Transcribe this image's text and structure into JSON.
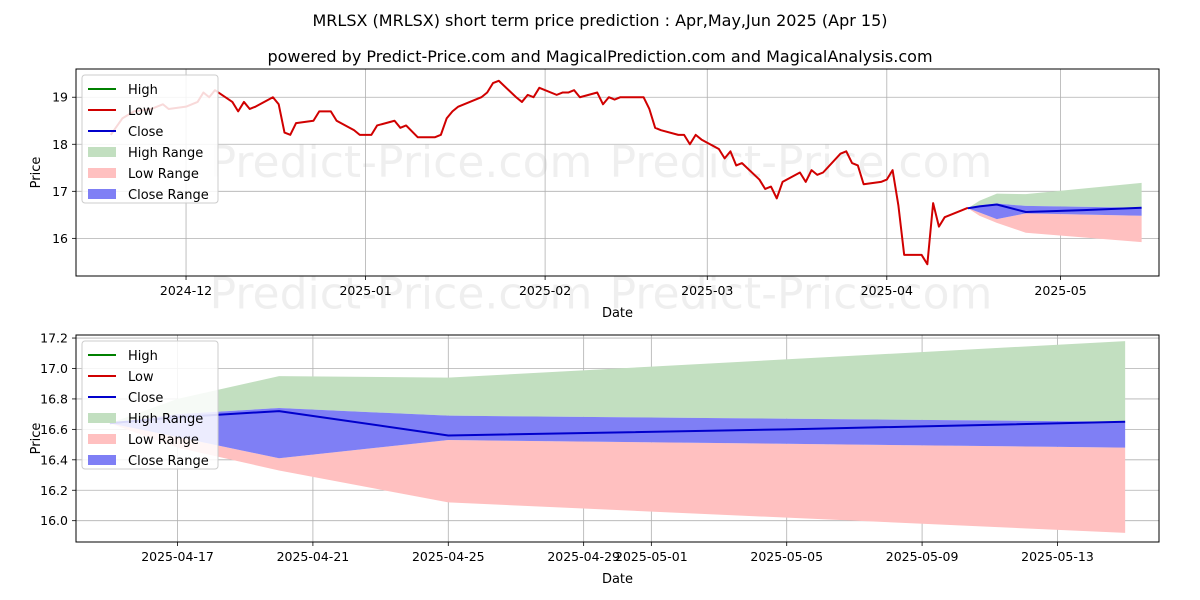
{
  "title": "MRLSX (MRLSX) short term price prediction : Apr,May,Jun 2025 (Apr 15)",
  "subtitle": "powered by Predict-Price.com and MagicalPrediction.com and MagicalAnalysis.com",
  "watermark": "Predict-Price.com",
  "colors": {
    "high": "#008000",
    "low": "#d00000",
    "close": "#0000cc",
    "high_range": "#c2dfc0",
    "low_range": "#ffc0c0",
    "close_range": "#7f7ff5"
  },
  "legend": {
    "placement": "top-left",
    "items": [
      "High",
      "Low",
      "Close",
      "High Range",
      "Low Range",
      "Close Range"
    ]
  },
  "chart_data": [
    {
      "type": "line",
      "xlabel": "Date",
      "ylabel": "Price",
      "xlim": [
        "2024-11-12",
        "2025-05-18"
      ],
      "ylim": [
        15.2,
        19.6
      ],
      "x_ticks": [
        "2024-12-01",
        "2025-01-01",
        "2025-02-01",
        "2025-03-01",
        "2025-04-01",
        "2025-05-01"
      ],
      "x_tick_labels": [
        "2024-12",
        "2025-01",
        "2025-02",
        "2025-03",
        "2025-04",
        "2025-05"
      ],
      "y_ticks": [
        16,
        17,
        18,
        19
      ],
      "grid": true,
      "series": [
        {
          "name": "Low",
          "points": [
            [
              "2024-11-18",
              18.2
            ],
            [
              "2024-11-20",
              18.55
            ],
            [
              "2024-11-22",
              18.7
            ],
            [
              "2024-11-25",
              18.75
            ],
            [
              "2024-11-27",
              18.85
            ],
            [
              "2024-11-28",
              18.75
            ],
            [
              "2024-12-01",
              18.8
            ],
            [
              "2024-12-03",
              18.9
            ],
            [
              "2024-12-04",
              19.1
            ],
            [
              "2024-12-05",
              19.0
            ],
            [
              "2024-12-06",
              19.15
            ],
            [
              "2024-12-09",
              18.9
            ],
            [
              "2024-12-10",
              18.7
            ],
            [
              "2024-12-11",
              18.9
            ],
            [
              "2024-12-12",
              18.75
            ],
            [
              "2024-12-13",
              18.8
            ],
            [
              "2024-12-16",
              19.0
            ],
            [
              "2024-12-17",
              18.85
            ],
            [
              "2024-12-18",
              18.25
            ],
            [
              "2024-12-19",
              18.2
            ],
            [
              "2024-12-20",
              18.45
            ],
            [
              "2024-12-23",
              18.5
            ],
            [
              "2024-12-24",
              18.7
            ],
            [
              "2024-12-26",
              18.7
            ],
            [
              "2024-12-27",
              18.5
            ],
            [
              "2024-12-30",
              18.3
            ],
            [
              "2024-12-31",
              18.2
            ],
            [
              "2025-01-02",
              18.2
            ],
            [
              "2025-01-03",
              18.4
            ],
            [
              "2025-01-06",
              18.5
            ],
            [
              "2025-01-07",
              18.35
            ],
            [
              "2025-01-08",
              18.4
            ],
            [
              "2025-01-10",
              18.15
            ],
            [
              "2025-01-13",
              18.15
            ],
            [
              "2025-01-14",
              18.2
            ],
            [
              "2025-01-15",
              18.55
            ],
            [
              "2025-01-16",
              18.7
            ],
            [
              "2025-01-17",
              18.8
            ],
            [
              "2025-01-21",
              19.0
            ],
            [
              "2025-01-22",
              19.1
            ],
            [
              "2025-01-23",
              19.3
            ],
            [
              "2025-01-24",
              19.35
            ],
            [
              "2025-01-27",
              19.0
            ],
            [
              "2025-01-28",
              18.9
            ],
            [
              "2025-01-29",
              19.05
            ],
            [
              "2025-01-30",
              19.0
            ],
            [
              "2025-01-31",
              19.2
            ],
            [
              "2025-02-03",
              19.05
            ],
            [
              "2025-02-04",
              19.1
            ],
            [
              "2025-02-05",
              19.1
            ],
            [
              "2025-02-06",
              19.15
            ],
            [
              "2025-02-07",
              19.0
            ],
            [
              "2025-02-10",
              19.1
            ],
            [
              "2025-02-11",
              18.85
            ],
            [
              "2025-02-12",
              19.0
            ],
            [
              "2025-02-13",
              18.95
            ],
            [
              "2025-02-14",
              19.0
            ],
            [
              "2025-02-18",
              19.0
            ],
            [
              "2025-02-19",
              18.75
            ],
            [
              "2025-02-20",
              18.35
            ],
            [
              "2025-02-21",
              18.3
            ],
            [
              "2025-02-24",
              18.2
            ],
            [
              "2025-02-25",
              18.2
            ],
            [
              "2025-02-26",
              18.0
            ],
            [
              "2025-02-27",
              18.2
            ],
            [
              "2025-02-28",
              18.1
            ],
            [
              "2025-03-03",
              17.9
            ],
            [
              "2025-03-04",
              17.7
            ],
            [
              "2025-03-05",
              17.85
            ],
            [
              "2025-03-06",
              17.55
            ],
            [
              "2025-03-07",
              17.6
            ],
            [
              "2025-03-10",
              17.25
            ],
            [
              "2025-03-11",
              17.05
            ],
            [
              "2025-03-12",
              17.1
            ],
            [
              "2025-03-13",
              16.85
            ],
            [
              "2025-03-14",
              17.2
            ],
            [
              "2025-03-17",
              17.4
            ],
            [
              "2025-03-18",
              17.2
            ],
            [
              "2025-03-19",
              17.45
            ],
            [
              "2025-03-20",
              17.35
            ],
            [
              "2025-03-21",
              17.4
            ],
            [
              "2025-03-24",
              17.8
            ],
            [
              "2025-03-25",
              17.85
            ],
            [
              "2025-03-26",
              17.6
            ],
            [
              "2025-03-27",
              17.55
            ],
            [
              "2025-03-28",
              17.15
            ],
            [
              "2025-03-31",
              17.2
            ],
            [
              "2025-04-01",
              17.25
            ],
            [
              "2025-04-02",
              17.45
            ],
            [
              "2025-04-03",
              16.7
            ],
            [
              "2025-04-04",
              15.65
            ],
            [
              "2025-04-07",
              15.65
            ],
            [
              "2025-04-08",
              15.45
            ],
            [
              "2025-04-09",
              16.75
            ],
            [
              "2025-04-10",
              16.25
            ],
            [
              "2025-04-11",
              16.45
            ],
            [
              "2025-04-14",
              16.6
            ],
            [
              "2025-04-15",
              16.65
            ]
          ]
        },
        {
          "name": "Close",
          "points": [
            [
              "2025-04-15",
              16.64
            ],
            [
              "2025-04-17",
              16.68
            ],
            [
              "2025-04-20",
              16.72
            ],
            [
              "2025-04-25",
              16.56
            ],
            [
              "2025-05-05",
              16.6
            ],
            [
              "2025-05-15",
              16.65
            ]
          ]
        },
        {
          "name": "High Range",
          "points": [
            [
              "2025-04-15",
              16.64
            ],
            [
              "2025-04-17",
              16.8
            ],
            [
              "2025-04-20",
              16.95
            ],
            [
              "2025-04-25",
              16.94
            ],
            [
              "2025-05-15",
              17.18
            ]
          ]
        },
        {
          "name": "Low Range",
          "points": [
            [
              "2025-04-15",
              16.64
            ],
            [
              "2025-04-17",
              16.48
            ],
            [
              "2025-04-20",
              16.33
            ],
            [
              "2025-04-25",
              16.12
            ],
            [
              "2025-05-15",
              15.92
            ]
          ]
        },
        {
          "name": "Close Range",
          "upper": [
            [
              "2025-04-15",
              16.64
            ],
            [
              "2025-04-17",
              16.7
            ],
            [
              "2025-04-20",
              16.74
            ],
            [
              "2025-04-25",
              16.69
            ],
            [
              "2025-05-15",
              16.65
            ]
          ],
          "lower": [
            [
              "2025-04-15",
              16.64
            ],
            [
              "2025-04-17",
              16.55
            ],
            [
              "2025-04-20",
              16.41
            ],
            [
              "2025-04-25",
              16.53
            ],
            [
              "2025-05-15",
              16.48
            ]
          ]
        }
      ]
    },
    {
      "type": "line",
      "xlabel": "Date",
      "ylabel": "Price",
      "xlim": [
        "2025-04-14",
        "2025-05-16"
      ],
      "ylim": [
        15.86,
        17.22
      ],
      "x_ticks": [
        "2025-04-17",
        "2025-04-21",
        "2025-04-25",
        "2025-04-29",
        "2025-05-01",
        "2025-05-05",
        "2025-05-09",
        "2025-05-13"
      ],
      "x_tick_labels": [
        "2025-04-17",
        "2025-04-21",
        "2025-04-25",
        "2025-04-29",
        "2025-05-01",
        "2025-05-05",
        "2025-05-09",
        "2025-05-13"
      ],
      "y_ticks": [
        16.0,
        16.2,
        16.4,
        16.6,
        16.8,
        17.0,
        17.2
      ],
      "y_tick_labels": [
        "16.0",
        "16.2",
        "16.4",
        "16.6",
        "16.8",
        "17.0",
        "17.2"
      ],
      "grid": true,
      "series": [
        {
          "name": "Close",
          "points": [
            [
              "2025-04-15",
              16.64
            ],
            [
              "2025-04-17",
              16.68
            ],
            [
              "2025-04-20",
              16.72
            ],
            [
              "2025-04-25",
              16.56
            ],
            [
              "2025-05-05",
              16.6
            ],
            [
              "2025-05-15",
              16.65
            ]
          ]
        },
        {
          "name": "High Range",
          "points": [
            [
              "2025-04-15",
              16.64
            ],
            [
              "2025-04-17",
              16.8
            ],
            [
              "2025-04-20",
              16.95
            ],
            [
              "2025-04-25",
              16.94
            ],
            [
              "2025-05-15",
              17.18
            ]
          ]
        },
        {
          "name": "Low Range",
          "points": [
            [
              "2025-04-15",
              16.64
            ],
            [
              "2025-04-17",
              16.48
            ],
            [
              "2025-04-20",
              16.33
            ],
            [
              "2025-04-25",
              16.12
            ],
            [
              "2025-05-15",
              15.92
            ]
          ]
        },
        {
          "name": "Close Range",
          "upper": [
            [
              "2025-04-15",
              16.64
            ],
            [
              "2025-04-17",
              16.7
            ],
            [
              "2025-04-20",
              16.74
            ],
            [
              "2025-04-25",
              16.69
            ],
            [
              "2025-05-15",
              16.65
            ]
          ],
          "lower": [
            [
              "2025-04-15",
              16.64
            ],
            [
              "2025-04-17",
              16.55
            ],
            [
              "2025-04-20",
              16.41
            ],
            [
              "2025-04-25",
              16.53
            ],
            [
              "2025-05-15",
              16.48
            ]
          ]
        }
      ]
    }
  ]
}
